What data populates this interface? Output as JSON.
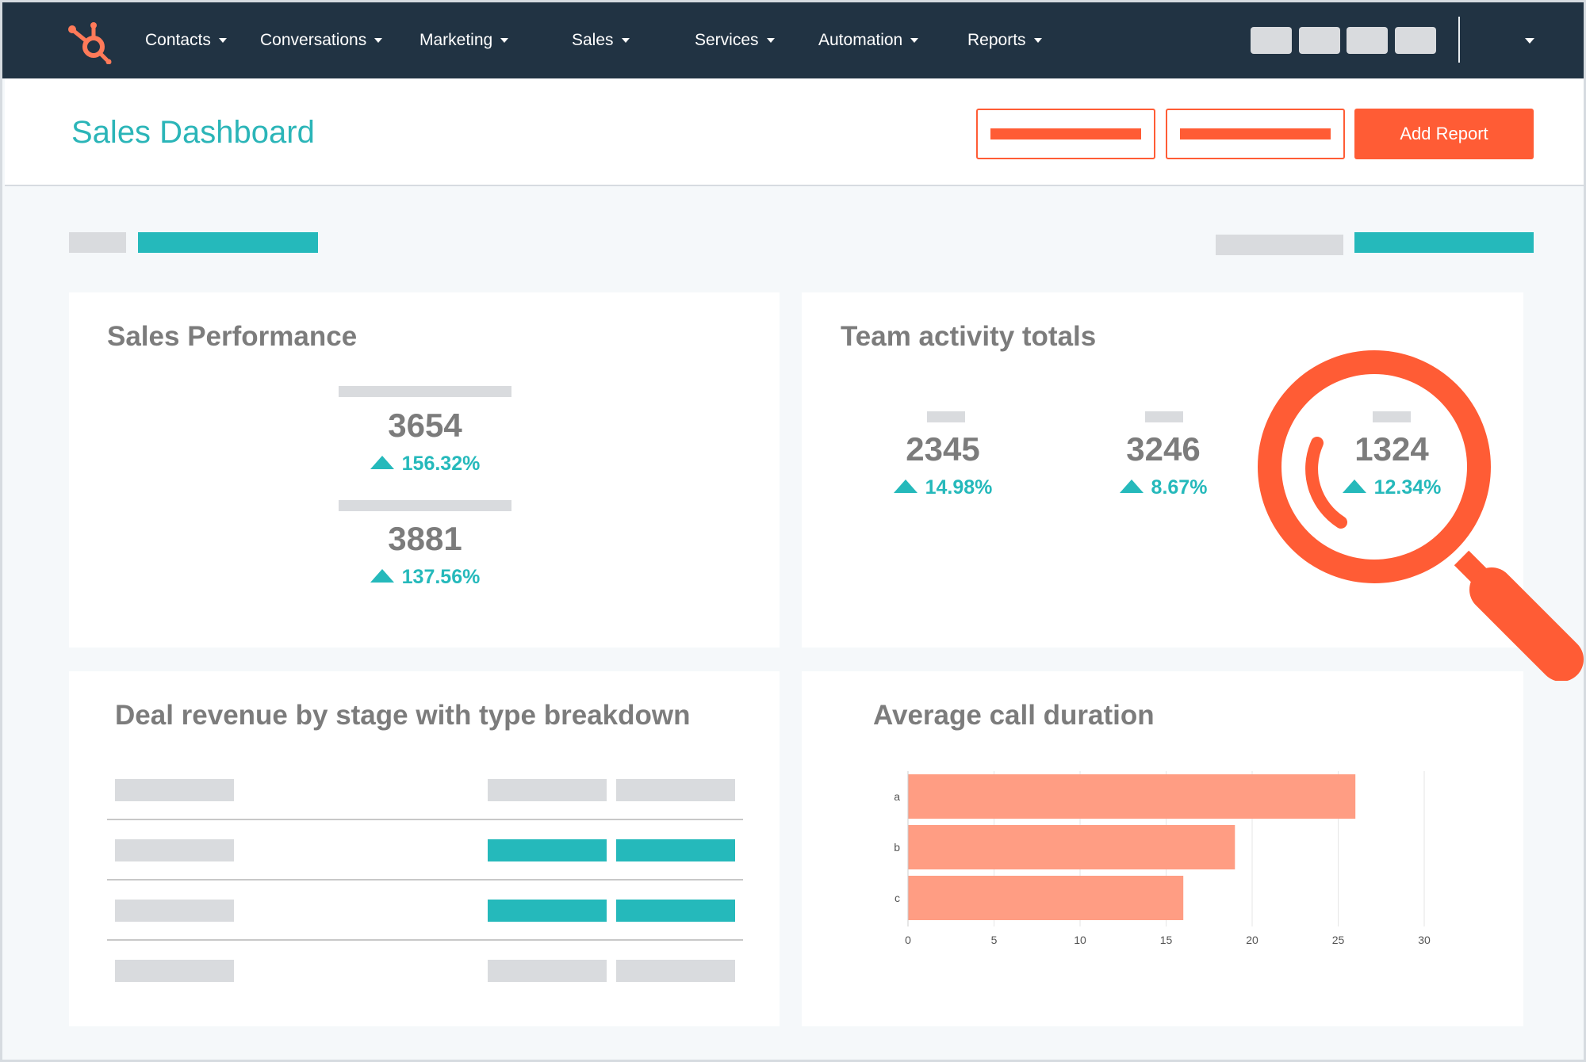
{
  "nav": {
    "items": [
      {
        "label": "Contacts"
      },
      {
        "label": "Conversations"
      },
      {
        "label": "Marketing"
      },
      {
        "label": "Sales"
      },
      {
        "label": "Services"
      },
      {
        "label": "Automation"
      },
      {
        "label": "Reports"
      }
    ],
    "logo_icon": "hubspot-sprocket-icon"
  },
  "header": {
    "title": "Sales Dashboard",
    "add_report_label": "Add Report"
  },
  "colors": {
    "nav_bg": "#213343",
    "accent_teal": "#25b9bb",
    "accent_orange": "#ff5c35",
    "bar_fill": "#ff9d83"
  },
  "cards": {
    "sales_performance": {
      "title": "Sales Performance",
      "metrics": [
        {
          "value": "3654",
          "change": "156.32%"
        },
        {
          "value": "3881",
          "change": "137.56%"
        }
      ]
    },
    "team_activity": {
      "title": "Team activity totals",
      "metrics": [
        {
          "value": "2345",
          "change": "14.98%"
        },
        {
          "value": "3246",
          "change": "8.67%"
        },
        {
          "value": "1324",
          "change": "12.34%"
        }
      ]
    },
    "deal_revenue": {
      "title": "Deal revenue by stage with type breakdown"
    },
    "avg_call": {
      "title": "Average call duration"
    }
  },
  "chart_data": {
    "type": "bar",
    "orientation": "horizontal",
    "categories": [
      "a",
      "b",
      "c"
    ],
    "values": [
      26,
      19,
      16
    ],
    "xlim": [
      0,
      30
    ],
    "xticks": [
      0,
      5,
      10,
      15,
      20,
      25,
      30
    ],
    "grid": true,
    "title": "Average call duration"
  }
}
